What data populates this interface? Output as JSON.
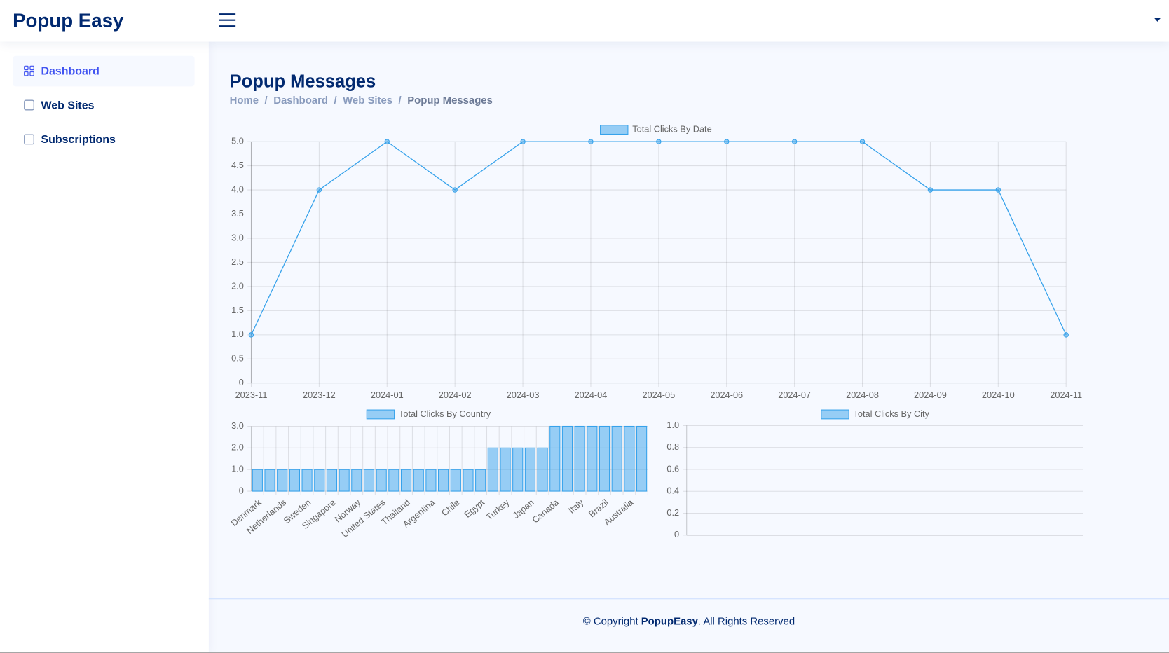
{
  "header": {
    "brand": "Popup Easy"
  },
  "sidebar": {
    "items": [
      "Dashboard",
      "Web Sites",
      "Subscriptions"
    ]
  },
  "page": {
    "title": "Popup Messages",
    "breadcrumb": [
      "Home",
      "Dashboard",
      "Web Sites",
      "Popup Messages"
    ]
  },
  "chart_data": [
    {
      "type": "line",
      "legend": "Total Clicks By Date",
      "color": "#36a2eb",
      "grid": true,
      "categories": [
        "2023-11",
        "2023-12",
        "2024-01",
        "2024-02",
        "2024-03",
        "2024-04",
        "2024-05",
        "2024-06",
        "2024-07",
        "2024-08",
        "2024-09",
        "2024-10",
        "2024-11"
      ],
      "values": [
        1,
        4,
        5,
        4,
        5,
        5,
        5,
        5,
        5,
        5,
        4,
        4,
        1
      ],
      "ylim": [
        0,
        5
      ],
      "yticks": [
        0,
        0.5,
        {
          "value": 1,
          "label": "1.0"
        },
        1.5,
        {
          "value": 2,
          "label": "2.0"
        },
        2.5,
        {
          "value": 3,
          "label": "3.0"
        },
        3.5,
        {
          "value": 4,
          "label": "4.0"
        },
        4.5,
        {
          "value": 5,
          "label": "5.0"
        }
      ]
    },
    {
      "type": "bar",
      "legend": "Total Clicks By Country",
      "color": "#36a2eb",
      "grid": true,
      "categories": [
        "Denmark",
        null,
        "Netherlands",
        null,
        "Sweden",
        null,
        "Singapore",
        null,
        "Norway",
        null,
        "United States",
        null,
        "Thailand",
        null,
        "Argentina",
        null,
        "Chile",
        null,
        "Egypt",
        null,
        "Turkey",
        null,
        "Japan",
        null,
        "Canada",
        null,
        "Italy",
        null,
        "Brazil",
        null,
        "Australia",
        null
      ],
      "values": [
        1,
        1,
        1,
        1,
        1,
        1,
        1,
        1,
        1,
        1,
        1,
        1,
        1,
        1,
        1,
        1,
        1,
        1,
        1,
        2,
        2,
        2,
        2,
        2,
        3,
        3,
        3,
        3,
        3,
        3,
        3,
        3
      ],
      "ylim": [
        0,
        3
      ],
      "yticks": [
        0,
        {
          "value": 1,
          "label": "1.0"
        },
        {
          "value": 2,
          "label": "2.0"
        },
        {
          "value": 3,
          "label": "3.0"
        }
      ]
    },
    {
      "type": "bar",
      "legend": "Total Clicks By City",
      "color": "#36a2eb",
      "grid": true,
      "categories": [],
      "values": [],
      "ylim": [
        0,
        1
      ],
      "yticks": [
        0,
        0.2,
        0.4,
        0.6,
        0.8,
        {
          "value": 1,
          "label": "1.0"
        }
      ]
    }
  ],
  "footer": {
    "prefix": "© Copyright",
    "brand": "PopupEasy",
    "suffix": ". All Rights Reserved"
  }
}
